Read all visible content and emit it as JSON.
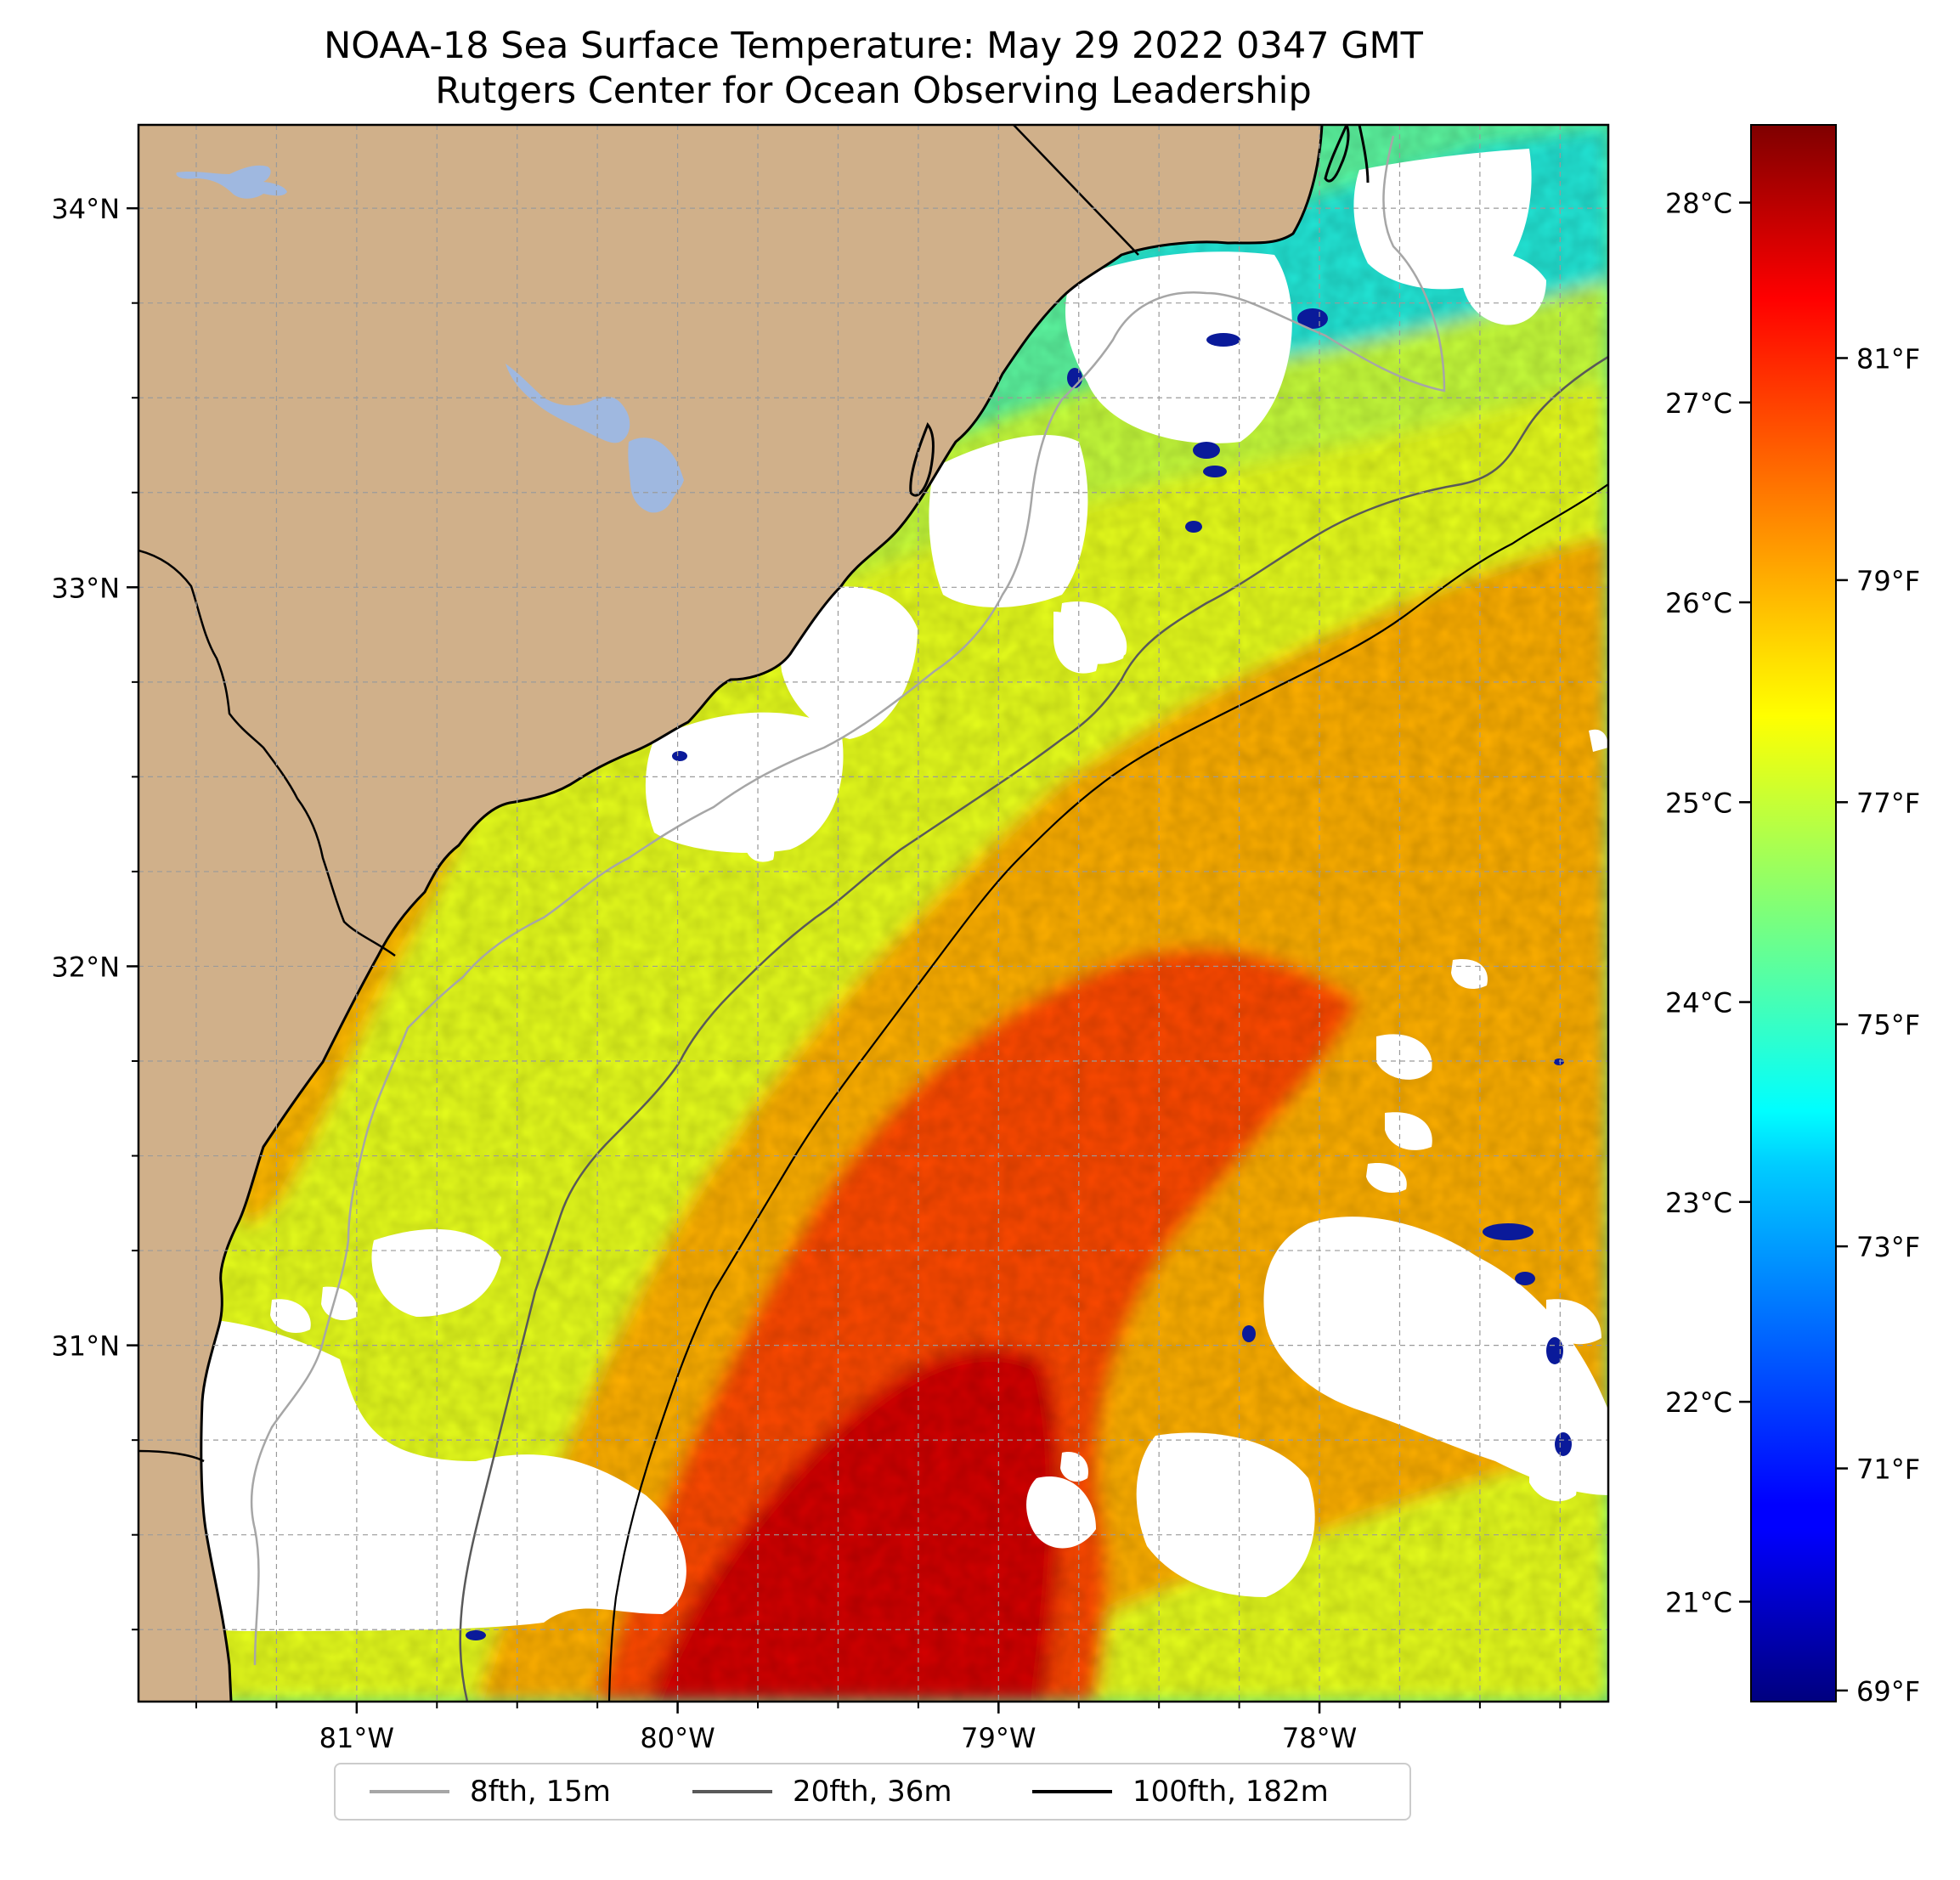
{
  "title": {
    "line1": "NOAA-18 Sea Surface Temperature: May 29 2022 0347 GMT",
    "line2": "Rutgers Center for Ocean Observing Leadership"
  },
  "map": {
    "lon_range": [
      -81.68,
      -77.1
    ],
    "lat_range": [
      30.06,
      34.22
    ],
    "lat_ticks": [
      {
        "value": 34,
        "label": "34°N"
      },
      {
        "value": 33,
        "label": "33°N"
      },
      {
        "value": 32,
        "label": "32°N"
      },
      {
        "value": 31,
        "label": "31°N"
      }
    ],
    "lon_ticks": [
      {
        "value": -81,
        "label": "81°W"
      },
      {
        "value": -80,
        "label": "80°W"
      },
      {
        "value": -79,
        "label": "79°W"
      },
      {
        "value": -78,
        "label": "78°W"
      }
    ],
    "gridlines": true,
    "land_color": "#d0b08a",
    "lake_color": "#9fb8e0",
    "coastline_color": "#000000",
    "no_data_color": "#ffffff"
  },
  "colorbar": {
    "colormap": "jet",
    "range_f": [
      68.9,
      83.1
    ],
    "celsius_ticks": [
      {
        "value": 28,
        "label": "28°C"
      },
      {
        "value": 27,
        "label": "27°C"
      },
      {
        "value": 26,
        "label": "26°C"
      },
      {
        "value": 25,
        "label": "25°C"
      },
      {
        "value": 24,
        "label": "24°C"
      },
      {
        "value": 23,
        "label": "23°C"
      },
      {
        "value": 22,
        "label": "22°C"
      },
      {
        "value": 21,
        "label": "21°C"
      }
    ],
    "fahrenheit_ticks": [
      {
        "value": 81,
        "label": "81°F"
      },
      {
        "value": 79,
        "label": "79°F"
      },
      {
        "value": 77,
        "label": "77°F"
      },
      {
        "value": 75,
        "label": "75°F"
      },
      {
        "value": 73,
        "label": "73°F"
      },
      {
        "value": 71,
        "label": "71°F"
      },
      {
        "value": 69,
        "label": "69°F"
      }
    ]
  },
  "legend": {
    "placement": "bottom-center",
    "items": [
      {
        "label": "8fth, 15m",
        "color": "#a6a6a6"
      },
      {
        "label": "20fth, 36m",
        "color": "#595959"
      },
      {
        "label": "100fth, 182m",
        "color": "#000000"
      }
    ]
  }
}
